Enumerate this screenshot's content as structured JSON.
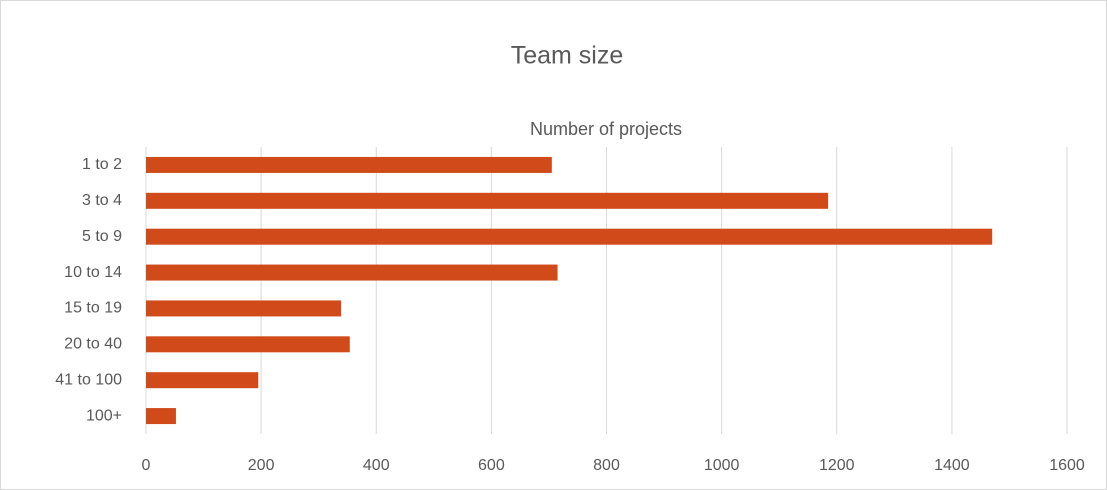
{
  "chart_data": {
    "type": "bar",
    "orientation": "horizontal",
    "title": "Team size",
    "x_axis_title": "Number of projects",
    "categories": [
      "1 to 2",
      "3 to 4",
      "5 to 9",
      "10 to 14",
      "15 to 19",
      "20 to 40",
      "41 to 100",
      "100+"
    ],
    "values": [
      705,
      1185,
      1470,
      715,
      339,
      354,
      195,
      52
    ],
    "color": "#d04a1a",
    "xlim": [
      0,
      1600
    ],
    "xticks": [
      0,
      200,
      400,
      600,
      800,
      1000,
      1200,
      1400,
      1600
    ],
    "grid": true
  }
}
